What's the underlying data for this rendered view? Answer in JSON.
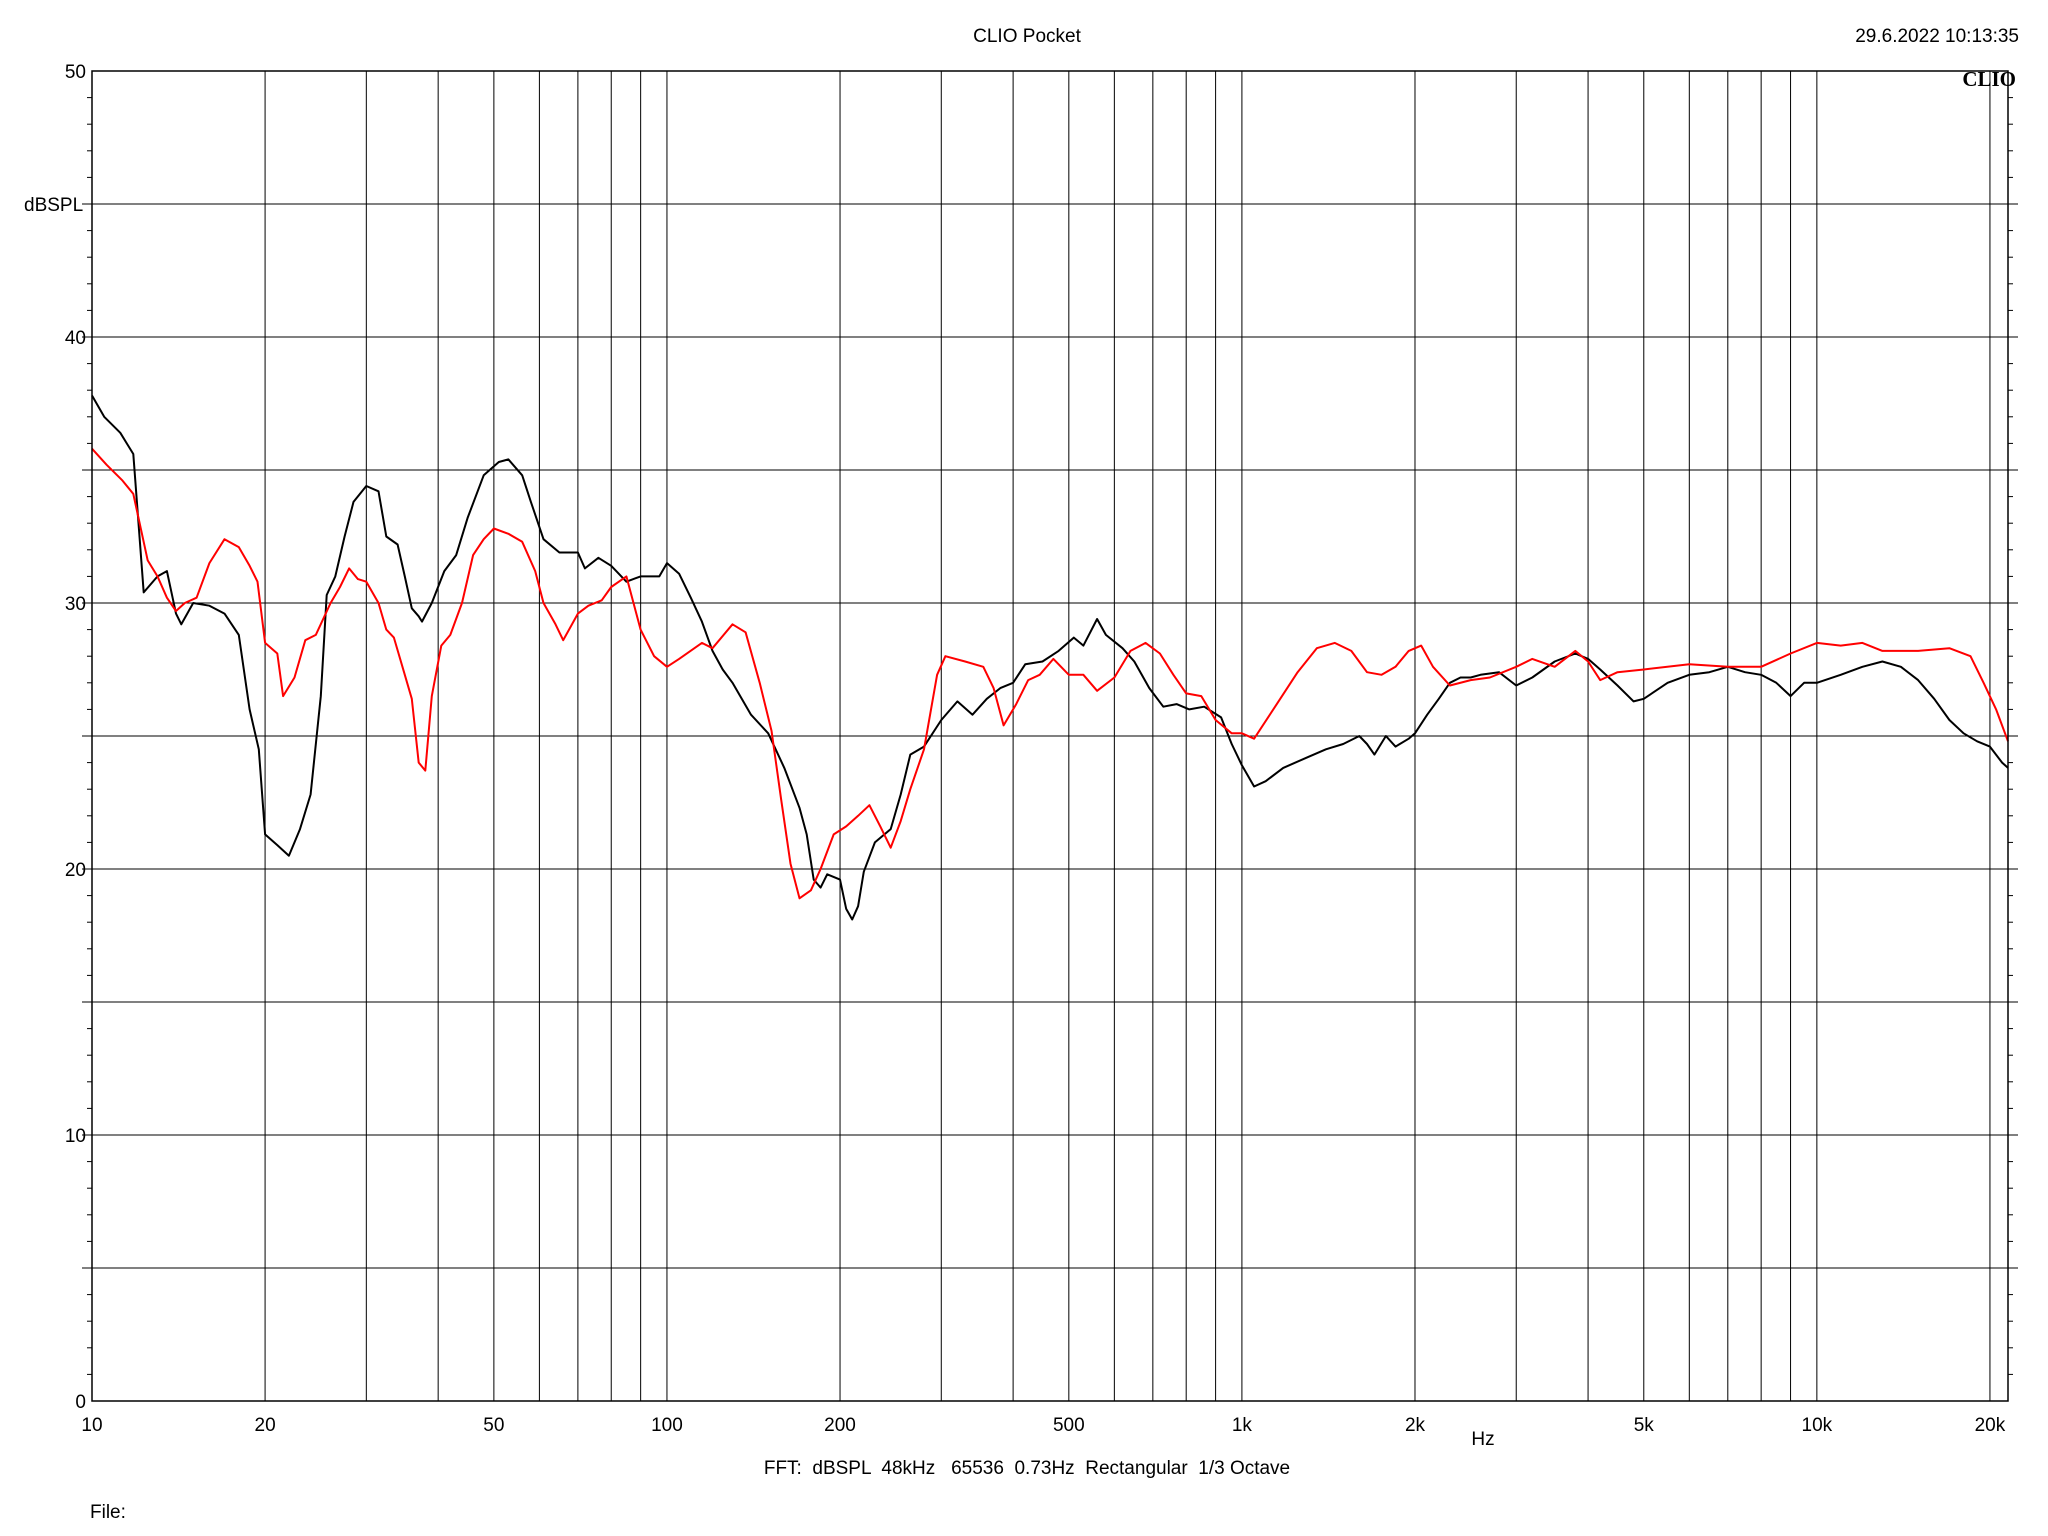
{
  "header": {
    "title": "CLIO Pocket",
    "datetime": "29.6.2022 10:13:35",
    "logo": "CLIO"
  },
  "footer": {
    "settings": "FFT:  dBSPL  48kHz   65536  0.73Hz  Rectangular  1/3 Octave",
    "file_label": "File:"
  },
  "chart_data": {
    "type": "line",
    "title": "CLIO Pocket",
    "xlabel": "Hz",
    "ylabel": "dBSPL",
    "xscale": "log",
    "xlim": [
      10,
      21500
    ],
    "ylim": [
      0,
      50
    ],
    "grid": true,
    "x_tick_labels": [
      {
        "v": 10,
        "t": "10"
      },
      {
        "v": 20,
        "t": "20"
      },
      {
        "v": 50,
        "t": "50"
      },
      {
        "v": 100,
        "t": "100"
      },
      {
        "v": 200,
        "t": "200"
      },
      {
        "v": 500,
        "t": "500"
      },
      {
        "v": 1000,
        "t": "1k"
      },
      {
        "v": 2000,
        "t": "2k"
      },
      {
        "v": 5000,
        "t": "5k"
      },
      {
        "v": 10000,
        "t": "10k"
      },
      {
        "v": 20000,
        "t": "20k"
      }
    ],
    "y_tick_labels": [
      {
        "v": 0,
        "t": "0"
      },
      {
        "v": 10,
        "t": "10"
      },
      {
        "v": 20,
        "t": "20"
      },
      {
        "v": 30,
        "t": "30"
      },
      {
        "v": 40,
        "t": "40"
      },
      {
        "v": 50,
        "t": "50"
      }
    ],
    "series": [
      {
        "color": "#000000",
        "points": [
          [
            10,
            37.8
          ],
          [
            10.5,
            37.0
          ],
          [
            11.2,
            36.4
          ],
          [
            11.8,
            35.6
          ],
          [
            12.3,
            30.4
          ],
          [
            13.0,
            31.0
          ],
          [
            13.5,
            31.2
          ],
          [
            14.0,
            29.6
          ],
          [
            14.3,
            29.2
          ],
          [
            15.0,
            30.0
          ],
          [
            16.0,
            29.9
          ],
          [
            17.0,
            29.6
          ],
          [
            18.0,
            28.8
          ],
          [
            18.8,
            26.0
          ],
          [
            19.5,
            24.5
          ],
          [
            20.0,
            21.3
          ],
          [
            21.0,
            20.9
          ],
          [
            22.0,
            20.5
          ],
          [
            23.0,
            21.5
          ],
          [
            24.0,
            22.8
          ],
          [
            25.0,
            26.5
          ],
          [
            25.6,
            30.3
          ],
          [
            26.5,
            31.0
          ],
          [
            27.5,
            32.5
          ],
          [
            28.5,
            33.8
          ],
          [
            30.0,
            34.4
          ],
          [
            31.5,
            34.2
          ],
          [
            32.5,
            32.5
          ],
          [
            34.0,
            32.2
          ],
          [
            35.0,
            31.0
          ],
          [
            36.0,
            29.8
          ],
          [
            37.0,
            29.5
          ],
          [
            37.5,
            29.3
          ],
          [
            39.0,
            30.0
          ],
          [
            41.0,
            31.2
          ],
          [
            43.0,
            31.8
          ],
          [
            45.0,
            33.2
          ],
          [
            48.0,
            34.8
          ],
          [
            51.0,
            35.3
          ],
          [
            53.0,
            35.4
          ],
          [
            56.0,
            34.8
          ],
          [
            58.0,
            33.8
          ],
          [
            61.0,
            32.4
          ],
          [
            65.0,
            31.9
          ],
          [
            70.0,
            31.9
          ],
          [
            72.0,
            31.3
          ],
          [
            76.0,
            31.7
          ],
          [
            80.0,
            31.4
          ],
          [
            85.0,
            30.8
          ],
          [
            90.0,
            31.0
          ],
          [
            97.0,
            31.0
          ],
          [
            100.0,
            31.5
          ],
          [
            105.0,
            31.1
          ],
          [
            110.0,
            30.2
          ],
          [
            115.0,
            29.3
          ],
          [
            120.0,
            28.2
          ],
          [
            125.0,
            27.5
          ],
          [
            130.0,
            27.0
          ],
          [
            140.0,
            25.8
          ],
          [
            150.0,
            25.1
          ],
          [
            160.0,
            23.8
          ],
          [
            170.0,
            22.3
          ],
          [
            175.0,
            21.3
          ],
          [
            180.0,
            19.6
          ],
          [
            185.0,
            19.3
          ],
          [
            190.0,
            19.8
          ],
          [
            200.0,
            19.6
          ],
          [
            205.0,
            18.5
          ],
          [
            210.0,
            18.1
          ],
          [
            215.0,
            18.6
          ],
          [
            220.0,
            19.9
          ],
          [
            230.0,
            21.0
          ],
          [
            245.0,
            21.5
          ],
          [
            255.0,
            22.8
          ],
          [
            265.0,
            24.3
          ],
          [
            280.0,
            24.6
          ],
          [
            300.0,
            25.6
          ],
          [
            320.0,
            26.3
          ],
          [
            340.0,
            25.8
          ],
          [
            360.0,
            26.4
          ],
          [
            380.0,
            26.8
          ],
          [
            400.0,
            27.0
          ],
          [
            420.0,
            27.7
          ],
          [
            450.0,
            27.8
          ],
          [
            480.0,
            28.2
          ],
          [
            510.0,
            28.7
          ],
          [
            530.0,
            28.4
          ],
          [
            560.0,
            29.4
          ],
          [
            580.0,
            28.8
          ],
          [
            620.0,
            28.3
          ],
          [
            650.0,
            27.8
          ],
          [
            690.0,
            26.8
          ],
          [
            730.0,
            26.1
          ],
          [
            770.0,
            26.2
          ],
          [
            810.0,
            26.0
          ],
          [
            860.0,
            26.1
          ],
          [
            920.0,
            25.7
          ],
          [
            960.0,
            24.7
          ],
          [
            1000.0,
            23.9
          ],
          [
            1050.0,
            23.1
          ],
          [
            1100.0,
            23.3
          ],
          [
            1180.0,
            23.8
          ],
          [
            1300.0,
            24.2
          ],
          [
            1400.0,
            24.5
          ],
          [
            1500.0,
            24.7
          ],
          [
            1600.0,
            25.0
          ],
          [
            1650.0,
            24.7
          ],
          [
            1700.0,
            24.3
          ],
          [
            1780.0,
            25.0
          ],
          [
            1850.0,
            24.6
          ],
          [
            1950.0,
            24.9
          ],
          [
            2000.0,
            25.1
          ],
          [
            2100.0,
            25.8
          ],
          [
            2200.0,
            26.4
          ],
          [
            2300.0,
            27.0
          ],
          [
            2400.0,
            27.2
          ],
          [
            2500.0,
            27.2
          ],
          [
            2600.0,
            27.3
          ],
          [
            2800.0,
            27.4
          ],
          [
            3000.0,
            26.9
          ],
          [
            3200.0,
            27.2
          ],
          [
            3500.0,
            27.8
          ],
          [
            3800.0,
            28.1
          ],
          [
            4000.0,
            27.9
          ],
          [
            4200.0,
            27.5
          ],
          [
            4500.0,
            26.9
          ],
          [
            4800.0,
            26.3
          ],
          [
            5000.0,
            26.4
          ],
          [
            5500.0,
            27.0
          ],
          [
            6000.0,
            27.3
          ],
          [
            6500.0,
            27.4
          ],
          [
            7000.0,
            27.6
          ],
          [
            7500.0,
            27.4
          ],
          [
            8000.0,
            27.3
          ],
          [
            8500.0,
            27.0
          ],
          [
            9000.0,
            26.5
          ],
          [
            9500.0,
            27.0
          ],
          [
            10000.0,
            27.0
          ],
          [
            11000.0,
            27.3
          ],
          [
            12000.0,
            27.6
          ],
          [
            13000.0,
            27.8
          ],
          [
            14000.0,
            27.6
          ],
          [
            15000.0,
            27.1
          ],
          [
            16000.0,
            26.4
          ],
          [
            17000.0,
            25.6
          ],
          [
            18000.0,
            25.1
          ],
          [
            19000.0,
            24.8
          ],
          [
            20000.0,
            24.6
          ],
          [
            21000.0,
            24.0
          ],
          [
            21500.0,
            23.8
          ]
        ]
      },
      {
        "color": "#ff0000",
        "points": [
          [
            10,
            35.8
          ],
          [
            10.6,
            35.2
          ],
          [
            11.3,
            34.6
          ],
          [
            11.8,
            34.1
          ],
          [
            12.5,
            31.6
          ],
          [
            13.0,
            31.0
          ],
          [
            13.5,
            30.2
          ],
          [
            14.0,
            29.7
          ],
          [
            14.5,
            30.0
          ],
          [
            15.2,
            30.2
          ],
          [
            16.0,
            31.5
          ],
          [
            17.0,
            32.4
          ],
          [
            18.0,
            32.1
          ],
          [
            18.8,
            31.4
          ],
          [
            19.4,
            30.8
          ],
          [
            20.0,
            28.5
          ],
          [
            21.0,
            28.1
          ],
          [
            21.5,
            26.5
          ],
          [
            22.5,
            27.2
          ],
          [
            23.5,
            28.6
          ],
          [
            24.5,
            28.8
          ],
          [
            26.0,
            30.0
          ],
          [
            27.0,
            30.6
          ],
          [
            28.0,
            31.3
          ],
          [
            29.0,
            30.9
          ],
          [
            30.0,
            30.8
          ],
          [
            31.5,
            30.0
          ],
          [
            32.5,
            29.0
          ],
          [
            33.5,
            28.7
          ],
          [
            35.0,
            27.3
          ],
          [
            36.0,
            26.4
          ],
          [
            37.0,
            24.0
          ],
          [
            38.0,
            23.7
          ],
          [
            39.0,
            26.5
          ],
          [
            40.5,
            28.4
          ],
          [
            42.0,
            28.8
          ],
          [
            44.0,
            30.0
          ],
          [
            46.0,
            31.8
          ],
          [
            48.0,
            32.4
          ],
          [
            50.0,
            32.8
          ],
          [
            53.0,
            32.6
          ],
          [
            56.0,
            32.3
          ],
          [
            59.0,
            31.2
          ],
          [
            61.0,
            30.0
          ],
          [
            64.0,
            29.2
          ],
          [
            66.0,
            28.6
          ],
          [
            70.0,
            29.6
          ],
          [
            73.0,
            29.9
          ],
          [
            77.0,
            30.1
          ],
          [
            80.0,
            30.6
          ],
          [
            85.0,
            31.0
          ],
          [
            90.0,
            29.0
          ],
          [
            95.0,
            28.0
          ],
          [
            100.0,
            27.6
          ],
          [
            105.0,
            27.9
          ],
          [
            115.0,
            28.5
          ],
          [
            120.0,
            28.3
          ],
          [
            130.0,
            29.2
          ],
          [
            137.0,
            28.9
          ],
          [
            145.0,
            27.0
          ],
          [
            152.0,
            25.2
          ],
          [
            158.0,
            22.6
          ],
          [
            164.0,
            20.2
          ],
          [
            170.0,
            18.9
          ],
          [
            178.0,
            19.2
          ],
          [
            185.0,
            20.0
          ],
          [
            195.0,
            21.3
          ],
          [
            205.0,
            21.6
          ],
          [
            215.0,
            22.0
          ],
          [
            225.0,
            22.4
          ],
          [
            235.0,
            21.6
          ],
          [
            245.0,
            20.8
          ],
          [
            255.0,
            21.8
          ],
          [
            265.0,
            23.0
          ],
          [
            280.0,
            24.5
          ],
          [
            295.0,
            27.3
          ],
          [
            305.0,
            28.0
          ],
          [
            330.0,
            27.8
          ],
          [
            355.0,
            27.6
          ],
          [
            370.0,
            26.8
          ],
          [
            385.0,
            25.4
          ],
          [
            405.0,
            26.2
          ],
          [
            425.0,
            27.1
          ],
          [
            445.0,
            27.3
          ],
          [
            470.0,
            27.9
          ],
          [
            500.0,
            27.3
          ],
          [
            530.0,
            27.3
          ],
          [
            560.0,
            26.7
          ],
          [
            600.0,
            27.2
          ],
          [
            640.0,
            28.2
          ],
          [
            680.0,
            28.5
          ],
          [
            720.0,
            28.1
          ],
          [
            760.0,
            27.3
          ],
          [
            800.0,
            26.6
          ],
          [
            850.0,
            26.5
          ],
          [
            900.0,
            25.6
          ],
          [
            960.0,
            25.1
          ],
          [
            1000.0,
            25.1
          ],
          [
            1050.0,
            24.9
          ],
          [
            1150.0,
            26.2
          ],
          [
            1250.0,
            27.4
          ],
          [
            1350.0,
            28.3
          ],
          [
            1450.0,
            28.5
          ],
          [
            1550.0,
            28.2
          ],
          [
            1650.0,
            27.4
          ],
          [
            1750.0,
            27.3
          ],
          [
            1850.0,
            27.6
          ],
          [
            1950.0,
            28.2
          ],
          [
            2050.0,
            28.4
          ],
          [
            2150.0,
            27.6
          ],
          [
            2300.0,
            26.9
          ],
          [
            2500.0,
            27.1
          ],
          [
            2700.0,
            27.2
          ],
          [
            3000.0,
            27.6
          ],
          [
            3200.0,
            27.9
          ],
          [
            3500.0,
            27.6
          ],
          [
            3800.0,
            28.2
          ],
          [
            4000.0,
            27.8
          ],
          [
            4200.0,
            27.1
          ],
          [
            4500.0,
            27.4
          ],
          [
            5000.0,
            27.5
          ],
          [
            6000.0,
            27.7
          ],
          [
            7000.0,
            27.6
          ],
          [
            8000.0,
            27.6
          ],
          [
            9000.0,
            28.1
          ],
          [
            10000.0,
            28.5
          ],
          [
            11000.0,
            28.4
          ],
          [
            12000.0,
            28.5
          ],
          [
            13000.0,
            28.2
          ],
          [
            15000.0,
            28.2
          ],
          [
            17000.0,
            28.3
          ],
          [
            18500.0,
            28.0
          ],
          [
            19500.0,
            27.0
          ],
          [
            20500.0,
            26.0
          ],
          [
            21500.0,
            24.8
          ]
        ]
      }
    ]
  }
}
